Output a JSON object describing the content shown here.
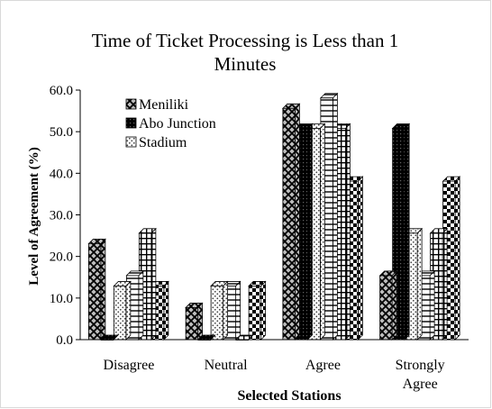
{
  "chart_data": {
    "type": "bar",
    "title": "Time of Ticket Processing is Less than 1 Minutes",
    "title_lines": [
      "Time of Ticket Processing is Less than 1",
      "Minutes"
    ],
    "xlabel": "Selected Stations",
    "ylabel": "Level of Agreement (%)",
    "ylim": [
      0,
      60
    ],
    "yticks": [
      "0.0",
      "10.0",
      "20.0",
      "30.0",
      "40.0",
      "50.0",
      "60.0"
    ],
    "categories": [
      "Disagree",
      "Neutral",
      "Agree",
      "Strongly Agree"
    ],
    "category_lines": [
      [
        "Disagree"
      ],
      [
        "Neutral"
      ],
      [
        "Agree"
      ],
      [
        "Strongly",
        "Agree"
      ]
    ],
    "series": [
      {
        "name": "Meniliki",
        "values": [
          23.1,
          7.7,
          55.6,
          15.4
        ]
      },
      {
        "name": "Abo Junction",
        "values": [
          0.0,
          0.0,
          50.8,
          50.8
        ]
      },
      {
        "name": "Stadium",
        "values": [
          12.9,
          12.9,
          50.8,
          25.6
        ]
      },
      {
        "values": [
          15.4,
          12.9,
          58.1,
          15.4
        ]
      },
      {
        "values": [
          25.6,
          0.0,
          50.8,
          25.6
        ]
      },
      {
        "values": [
          12.9,
          12.9,
          38.1,
          38.1
        ]
      }
    ],
    "legend": [
      "Meniliki",
      "Abo Junction",
      "Stadium"
    ],
    "legend_position": "top-left",
    "grid": false
  }
}
